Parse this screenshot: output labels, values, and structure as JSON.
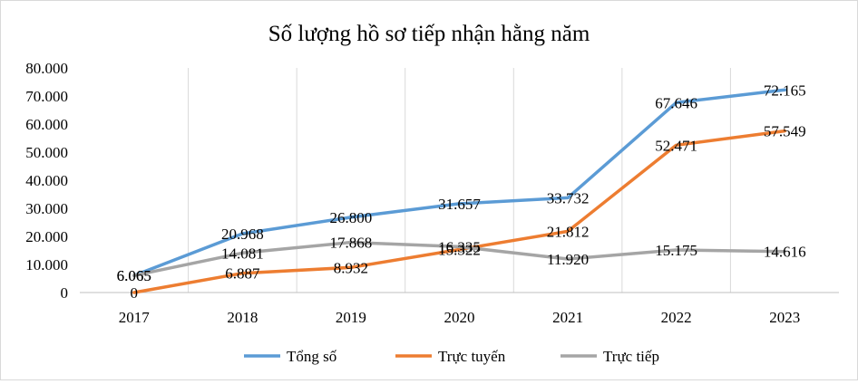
{
  "chart_data": {
    "type": "line",
    "title": "Số lượng hồ sơ tiếp nhận hằng năm",
    "xlabel": "",
    "ylabel": "",
    "categories": [
      "2017",
      "2018",
      "2019",
      "2020",
      "2021",
      "2022",
      "2023"
    ],
    "ylim": [
      0,
      80000
    ],
    "yticks": [
      0,
      10000,
      20000,
      30000,
      40000,
      50000,
      60000,
      70000,
      80000
    ],
    "ytick_labels": [
      "0",
      "10.000",
      "20.000",
      "30.000",
      "40.000",
      "50.000",
      "60.000",
      "70.000",
      "80.000"
    ],
    "grid": "vertical",
    "legend": "bottom",
    "series": [
      {
        "name": "Tổng số",
        "color": "#5b9bd5",
        "values": [
          6065,
          20968,
          26800,
          31657,
          33732,
          67646,
          72165
        ],
        "labels": [
          "6.065",
          "20.968",
          "26.800",
          "31.657",
          "33.732",
          "67.646",
          "72.165"
        ]
      },
      {
        "name": "Trực tuyến",
        "color": "#ed7d31",
        "values": [
          0,
          6887,
          8932,
          15322,
          21812,
          52471,
          57549
        ],
        "labels": [
          "0",
          "6.887",
          "8.932",
          "15.322",
          "21.812",
          "52.471",
          "57.549"
        ]
      },
      {
        "name": "Trực tiếp",
        "color": "#a5a5a5",
        "values": [
          6065,
          14081,
          17868,
          16335,
          11920,
          15175,
          14616
        ],
        "labels": [
          "6.065",
          "14.081",
          "17.868",
          "16.335",
          "11.920",
          "15.175",
          "14.616"
        ]
      }
    ]
  }
}
